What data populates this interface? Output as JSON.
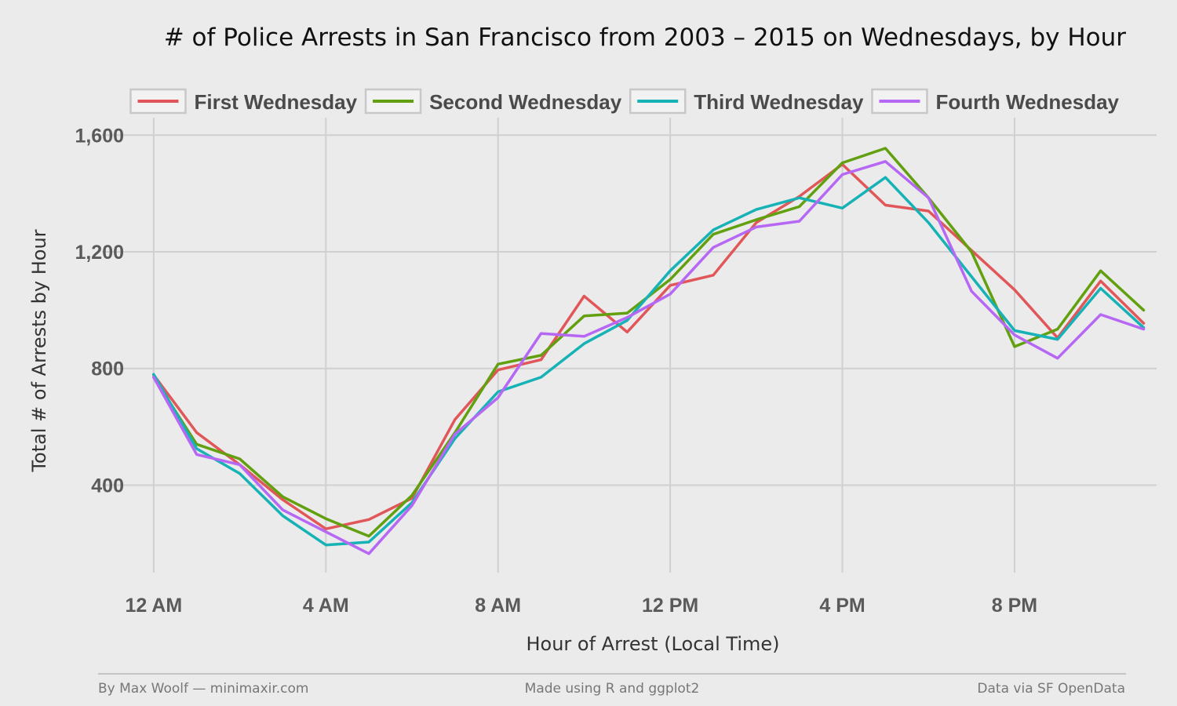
{
  "chart_data": {
    "type": "line",
    "title": "# of Police Arrests in San Francisco from 2003 – 2015 on Wednesdays, by Hour",
    "xlabel": "Hour of Arrest (Local Time)",
    "ylabel": "Total # of Arrests by Hour",
    "ylim": [
      100,
      1660
    ],
    "xlim": [
      -1.2,
      23.3
    ],
    "yticks": [
      400,
      800,
      1200,
      1600
    ],
    "ytick_labels": [
      "400",
      "800",
      "1,200",
      "1,600"
    ],
    "xticks": [
      0,
      4,
      8,
      12,
      16,
      20
    ],
    "xtick_labels": [
      "12 AM",
      "4 AM",
      "8 AM",
      "12 PM",
      "4 PM",
      "8 PM"
    ],
    "grid": true,
    "legend_position": "top",
    "x": [
      0,
      1,
      2,
      3,
      4,
      5,
      6,
      7,
      8,
      9,
      10,
      11,
      12,
      13,
      14,
      15,
      16,
      17,
      18,
      19,
      20,
      21,
      22,
      23
    ],
    "series": [
      {
        "name": "First Wednesday",
        "color": "#e15759",
        "values": [
          778,
          580,
          470,
          350,
          250,
          282,
          355,
          625,
          795,
          830,
          1048,
          925,
          1085,
          1120,
          1300,
          1390,
          1500,
          1360,
          1340,
          1205,
          1070,
          905,
          1100,
          955
        ]
      },
      {
        "name": "Second Wednesday",
        "color": "#62a00f",
        "values": [
          770,
          540,
          490,
          360,
          285,
          225,
          365,
          580,
          815,
          845,
          980,
          990,
          1105,
          1260,
          1310,
          1355,
          1505,
          1555,
          1385,
          1200,
          875,
          935,
          1135,
          1000
        ]
      },
      {
        "name": "Third Wednesday",
        "color": "#17b2b6",
        "values": [
          780,
          525,
          440,
          295,
          195,
          205,
          340,
          560,
          720,
          770,
          885,
          965,
          1135,
          1275,
          1345,
          1385,
          1350,
          1455,
          1300,
          1115,
          930,
          900,
          1075,
          940
        ]
      },
      {
        "name": "Fourth Wednesday",
        "color": "#b667f4",
        "values": [
          770,
          505,
          470,
          315,
          240,
          165,
          330,
          575,
          700,
          920,
          910,
          975,
          1055,
          1215,
          1285,
          1305,
          1465,
          1510,
          1385,
          1065,
          915,
          835,
          985,
          935
        ]
      }
    ]
  },
  "footer": {
    "left": "By Max Woolf — minimaxir.com",
    "center": "Made using R and ggplot2",
    "right": "Data via SF OpenData"
  }
}
